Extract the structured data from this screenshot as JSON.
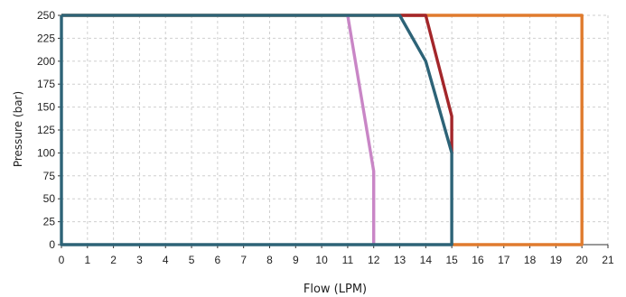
{
  "chart_data": {
    "type": "line",
    "title": "",
    "xlabel": "Flow (LPM)",
    "ylabel": "Pressure (bar)",
    "xlim": [
      0,
      21
    ],
    "ylim": [
      0,
      250
    ],
    "xticks": [
      0,
      1,
      2,
      3,
      4,
      5,
      6,
      7,
      8,
      9,
      10,
      11,
      12,
      13,
      14,
      15,
      16,
      17,
      18,
      19,
      20,
      21
    ],
    "yticks": [
      0,
      25,
      50,
      75,
      100,
      125,
      150,
      175,
      200,
      225,
      250
    ],
    "grid": true,
    "legend": "none",
    "series": [
      {
        "color": "#e07b2e",
        "x": [
          15,
          20,
          20,
          0
        ],
        "y": [
          0,
          0,
          250,
          250
        ]
      },
      {
        "color": "#a3262a",
        "x": [
          13,
          14,
          15,
          15
        ],
        "y": [
          250,
          250,
          140,
          100
        ]
      },
      {
        "color": "#c986c6",
        "x": [
          11,
          12,
          12
        ],
        "y": [
          250,
          80,
          0
        ]
      },
      {
        "color": "#2d6377",
        "x": [
          0,
          0,
          15,
          15,
          14,
          13,
          0
        ],
        "y": [
          250,
          0,
          0,
          100,
          200,
          250,
          250
        ]
      }
    ]
  }
}
